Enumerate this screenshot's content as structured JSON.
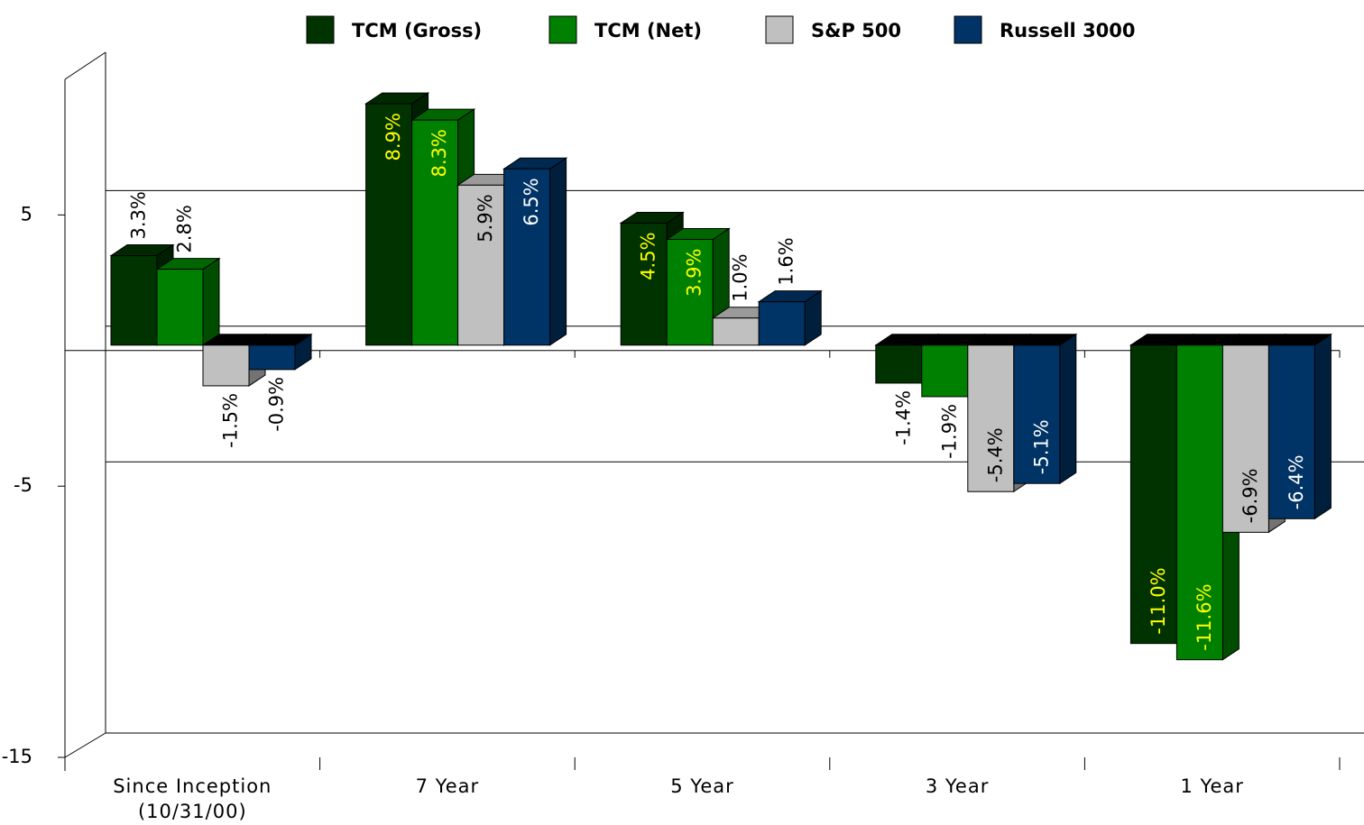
{
  "chart_data": {
    "type": "bar3d",
    "categories": [
      "Since Inception (10/31/00)",
      "7 Year",
      "5 Year",
      "3 Year",
      "1 Year"
    ],
    "series": [
      {
        "name": "TCM (Gross)",
        "color": "#003300",
        "label_color": "#ffff00",
        "values": [
          3.3,
          8.9,
          4.5,
          -1.4,
          -11.0
        ],
        "value_labels": [
          "3.3%",
          "8.9%",
          "4.5%",
          "-1.4%",
          "-11.0%"
        ]
      },
      {
        "name": "TCM (Net)",
        "color": "#008000",
        "label_color": "#ffff00",
        "values": [
          2.8,
          8.3,
          3.9,
          -1.9,
          -11.6
        ],
        "value_labels": [
          "2.8%",
          "8.3%",
          "3.9%",
          "-1.9%",
          "-11.6%"
        ]
      },
      {
        "name": "S&P 500",
        "color": "#c0c0c0",
        "label_color": "#000000",
        "values": [
          -1.5,
          5.9,
          1.0,
          -5.4,
          -6.9
        ],
        "value_labels": [
          "-1.5%",
          "5.9%",
          "1.0%",
          "-5.4%",
          "-6.9%"
        ]
      },
      {
        "name": "Russell 3000",
        "color": "#003366",
        "label_color": "#ffffff",
        "values": [
          -0.9,
          6.5,
          1.6,
          -5.1,
          -6.4
        ],
        "value_labels": [
          "-0.9%",
          "6.5%",
          "1.6%",
          "-5.1%",
          "-6.4%"
        ]
      }
    ],
    "ylim": [
      -15,
      10
    ],
    "yticks": [
      -15,
      -5,
      5
    ],
    "grid": true
  }
}
